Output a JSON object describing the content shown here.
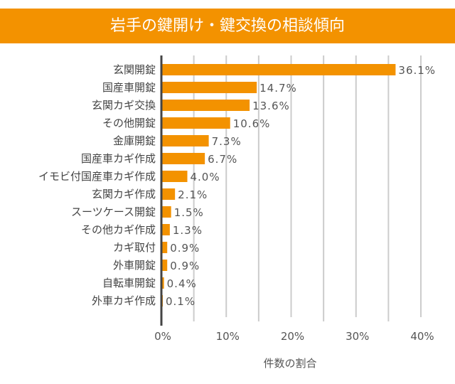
{
  "chart_data": {
    "type": "bar",
    "orientation": "horizontal",
    "title": "岩手の鍵開け・鍵交換の相談傾向",
    "xlabel": "件数の割合",
    "ylabel": "",
    "xlim": [
      0,
      40
    ],
    "xticks": [
      "0%",
      "10%",
      "20%",
      "30%",
      "40%"
    ],
    "grid": true,
    "bar_color": "#f39200",
    "categories": [
      "玄関開錠",
      "国産車開錠",
      "玄関カギ交換",
      "その他開錠",
      "金庫開錠",
      "国産車カギ作成",
      "イモビ付国産車カギ作成",
      "玄関カギ作成",
      "スーツケース開錠",
      "その他カギ作成",
      "カギ取付",
      "外車開錠",
      "自転車開錠",
      "外車カギ作成"
    ],
    "values": [
      36.1,
      14.7,
      13.6,
      10.6,
      7.3,
      6.7,
      4.0,
      2.1,
      1.5,
      1.3,
      0.9,
      0.9,
      0.4,
      0.1
    ],
    "labels": [
      "36.1%",
      "14.7%",
      "13.6%",
      "10.6%",
      "7.3%",
      "6.7%",
      "4.0%",
      "2.1%",
      "1.5%",
      "1.3%",
      "0.9%",
      "0.9%",
      "0.4%",
      "0.1%"
    ]
  }
}
